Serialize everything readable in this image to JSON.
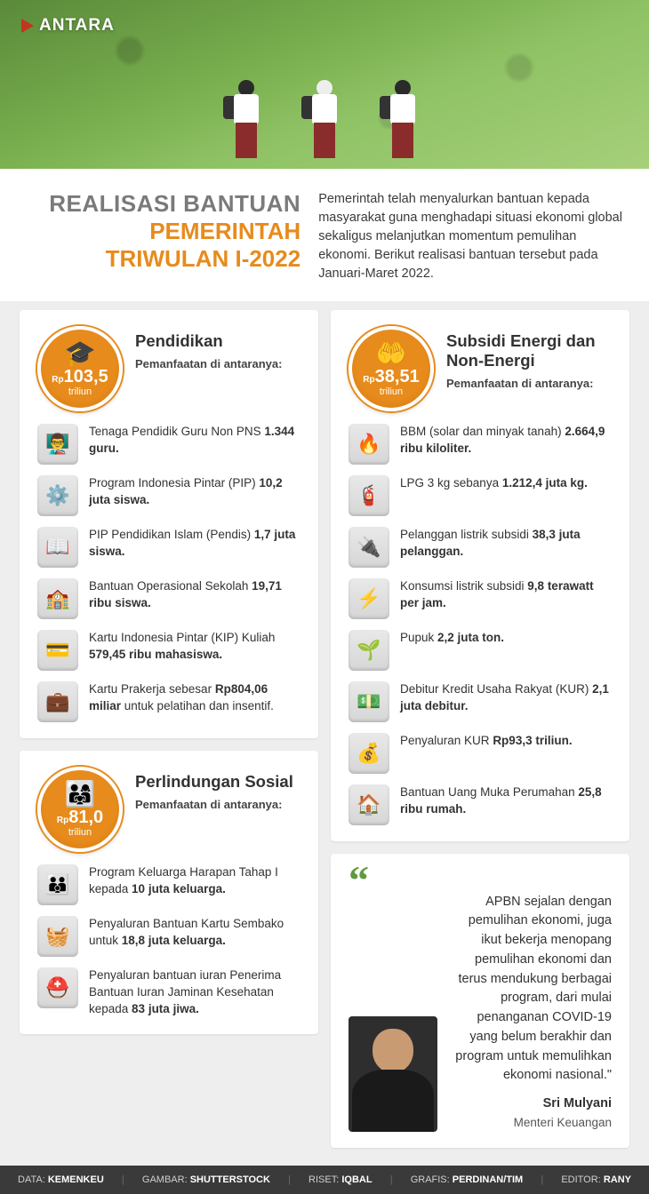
{
  "brand": "ANTARA",
  "title": {
    "l1": "REALISASI BANTUAN",
    "l2": "PEMERINTAH",
    "l3": "TRIWULAN I-2022"
  },
  "intro": "Pemerintah telah menyalurkan bantuan kepada masyarakat guna menghadapi situasi ekonomi global sekaligus melanjutkan momentum pemulihan ekonomi. Berikut realisasi bantuan tersebut pada Januari-Maret 2022.",
  "sections": {
    "pendidikan": {
      "title": "Pendidikan",
      "sub": "Pemanfaatan di antaranya:",
      "currency": "Rp",
      "amount": "103,5",
      "unit": "triliun",
      "icon": "🎓",
      "items": [
        {
          "icon": "👨‍🏫",
          "text_pre": "Tenaga Pendidik Guru Non PNS ",
          "bold": "1.344 guru.",
          "text_post": ""
        },
        {
          "icon": "⚙️",
          "text_pre": "Program Indonesia Pintar (PIP) ",
          "bold": "10,2 juta siswa.",
          "text_post": ""
        },
        {
          "icon": "📖",
          "text_pre": "PIP Pendidikan Islam (Pendis) ",
          "bold": "1,7 juta siswa.",
          "text_post": ""
        },
        {
          "icon": "🏫",
          "text_pre": "Bantuan Operasional Sekolah ",
          "bold": "19,71 ribu siswa.",
          "text_post": ""
        },
        {
          "icon": "💳",
          "text_pre": "Kartu Indonesia Pintar (KIP) Kuliah ",
          "bold": "579,45 ribu mahasiswa.",
          "text_post": ""
        },
        {
          "icon": "💼",
          "text_pre": "Kartu Prakerja sebesar ",
          "bold": "Rp804,06 miliar",
          "text_post": " untuk pelatihan dan insentif."
        }
      ]
    },
    "sosial": {
      "title": "Perlindungan Sosial",
      "sub": "Pemanfaatan di antaranya:",
      "currency": "Rp",
      "amount": "81,0",
      "unit": "triliun",
      "icon": "👨‍👩‍👧",
      "items": [
        {
          "icon": "👪",
          "text_pre": "Program Keluarga Harapan Tahap I kepada ",
          "bold": "10 juta keluarga.",
          "text_post": ""
        },
        {
          "icon": "🧺",
          "text_pre": "Penyaluran Bantuan Kartu Sembako untuk ",
          "bold": "18,8 juta keluarga.",
          "text_post": ""
        },
        {
          "icon": "⛑️",
          "text_pre": "Penyaluran bantuan iuran Penerima Bantuan Iuran Jaminan Kesehatan kepada ",
          "bold": "83 juta jiwa.",
          "text_post": ""
        }
      ]
    },
    "energi": {
      "title": "Subsidi Energi dan Non-Energi",
      "sub": "Pemanfaatan di antaranya:",
      "currency": "Rp",
      "amount": "38,51",
      "unit": "triliun",
      "icon": "🤲",
      "items": [
        {
          "icon": "🔥",
          "text_pre": "BBM (solar dan minyak tanah) ",
          "bold": "2.664,9 ribu kiloliter.",
          "text_post": ""
        },
        {
          "icon": "🧯",
          "text_pre": "LPG 3 kg sebanya ",
          "bold": "1.212,4 juta kg.",
          "text_post": ""
        },
        {
          "icon": "🔌",
          "text_pre": "Pelanggan listrik subsidi ",
          "bold": "38,3 juta pelanggan.",
          "text_post": ""
        },
        {
          "icon": "⚡",
          "text_pre": "Konsumsi listrik subsidi ",
          "bold": "9,8 terawatt per jam.",
          "text_post": ""
        },
        {
          "icon": "🌱",
          "text_pre": "Pupuk ",
          "bold": "2,2 juta ton.",
          "text_post": ""
        },
        {
          "icon": "💵",
          "text_pre": "Debitur Kredit Usaha Rakyat (KUR) ",
          "bold": "2,1 juta debitur.",
          "text_post": ""
        },
        {
          "icon": "💰",
          "text_pre": "Penyaluran KUR ",
          "bold": "Rp93,3 triliun.",
          "text_post": ""
        },
        {
          "icon": "🏠",
          "text_pre": "Bantuan Uang Muka Perumahan ",
          "bold": "25,8 ribu rumah.",
          "text_post": ""
        }
      ]
    }
  },
  "quote": {
    "text": "APBN sejalan dengan pemulihan ekonomi, juga ikut bekerja menopang pemulihan ekonomi dan terus mendukung berbagai program, dari mulai penanganan COVID-19 yang belum berakhir dan program untuk memulihkan ekonomi nasional.\"",
    "name": "Sri Mulyani",
    "role": "Menteri Keuangan"
  },
  "footer": {
    "data_label": "DATA:",
    "data": "KEMENKEU",
    "gambar_label": "GAMBAR:",
    "gambar": "SHUTTERSTOCK",
    "riset_label": "RISET:",
    "riset": "IQBAL",
    "grafis_label": "GRAFIS:",
    "grafis": "PERDINAN/TIM",
    "editor_label": "EDITOR:",
    "editor": "RANY"
  },
  "colors": {
    "accent": "#e78b1c",
    "grey_title": "#7a7a7a",
    "quote_green": "#5f9a3e",
    "footer_bg": "#3a3a3a"
  }
}
